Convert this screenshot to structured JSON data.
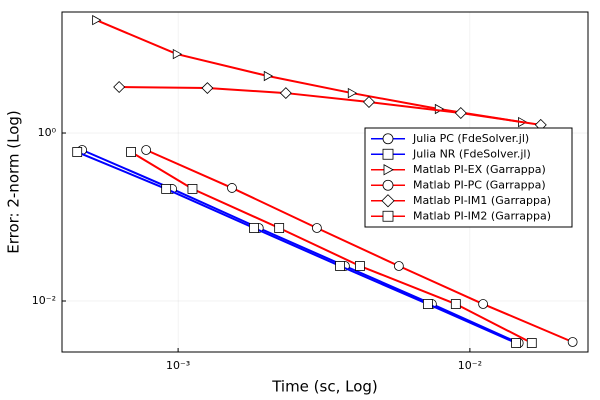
{
  "chart_data": {
    "type": "line",
    "xlabel": "Time (sc, Log)",
    "ylabel": "Error: 2-norm (Log)",
    "xscale": "log",
    "yscale": "log",
    "grid": true,
    "legend_position": "right",
    "xlim": [
      0.0004,
      0.0254
    ],
    "ylim": [
      0.00247,
      27.6
    ],
    "xticks": [
      {
        "value": 0.001,
        "label": "10⁻³"
      },
      {
        "value": 0.01,
        "label": "10⁻²"
      }
    ],
    "yticks": [
      {
        "value": 1,
        "label": "10⁰"
      },
      {
        "value": 0.01,
        "label": "10⁻²"
      }
    ],
    "series": [
      {
        "name": "Julia PC (FdeSolver.jl)",
        "color": "#0000ff",
        "marker": "circle",
        "x": [
          0.000469,
          0.000954,
          0.00189,
          0.00373,
          0.00741,
          0.0147
        ],
        "values": [
          0.628,
          0.216,
          0.074,
          0.0261,
          0.0092,
          0.00316
        ]
      },
      {
        "name": "Julia NR (FdeSolver.jl)",
        "color": "#0000ff",
        "marker": "square",
        "x": [
          0.000451,
          0.00091,
          0.00182,
          0.00359,
          0.00718,
          0.0144
        ],
        "values": [
          0.594,
          0.216,
          0.074,
          0.0261,
          0.0092,
          0.00316
        ]
      },
      {
        "name": "Matlab PI-EX (Garrappa)",
        "color": "#ff0000",
        "marker": "triangle",
        "x": [
          0.000524,
          0.00099,
          0.00203,
          0.00394,
          0.00783,
          0.0151
        ],
        "values": [
          22.1,
          8.71,
          4.77,
          2.99,
          1.93,
          1.35
        ]
      },
      {
        "name": "Matlab PI-PC (Garrappa)",
        "color": "#ff0000",
        "marker": "circle",
        "x": [
          0.000777,
          0.00153,
          0.00299,
          0.00571,
          0.0111,
          0.0225
        ],
        "values": [
          0.628,
          0.222,
          0.074,
          0.0261,
          0.0092,
          0.00325
        ]
      },
      {
        "name": "Matlab PI-IM1 (Garrappa)",
        "color": "#ff0000",
        "marker": "diamond",
        "x": [
          0.000628,
          0.00126,
          0.00234,
          0.00451,
          0.00931,
          0.0175
        ],
        "values": [
          3.53,
          3.43,
          2.99,
          2.34,
          1.73,
          1.25
        ]
      },
      {
        "name": "Matlab PI-IM2 (Garrappa)",
        "color": "#ff0000",
        "marker": "square",
        "x": [
          0.00069,
          0.00112,
          0.00222,
          0.0042,
          0.00895,
          0.0163
        ],
        "values": [
          0.594,
          0.216,
          0.074,
          0.0261,
          0.0092,
          0.00316
        ]
      }
    ]
  }
}
